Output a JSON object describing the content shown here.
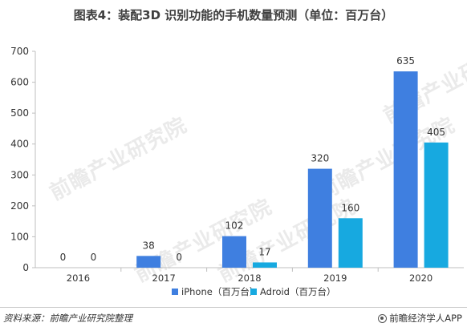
{
  "title": "图表4：装配3D 识别功能的手机数量预测（单位：百万台）",
  "source": "资料来源：前瞻产业研究院整理",
  "brand": "前瞻经济学人APP",
  "watermark": "前瞻产业研究院",
  "colors": {
    "iphone": "#3f7fe0",
    "adroid": "#17a9e0",
    "axis": "#bfbfbf",
    "grid": "#d9d9d9"
  },
  "chart_data": {
    "type": "bar",
    "categories": [
      "2016",
      "2017",
      "2018",
      "2019",
      "2020"
    ],
    "series": [
      {
        "name": "iPhone（百万台）",
        "values": [
          0,
          38,
          102,
          320,
          635
        ]
      },
      {
        "name": "Adroid（百万台）",
        "values": [
          0,
          0,
          17,
          160,
          405
        ]
      }
    ],
    "ylim": [
      0,
      700
    ],
    "yticks": [
      "0",
      "100",
      "200",
      "300",
      "400",
      "500",
      "600",
      "700"
    ],
    "legend_position": "bottom",
    "grid": false
  }
}
